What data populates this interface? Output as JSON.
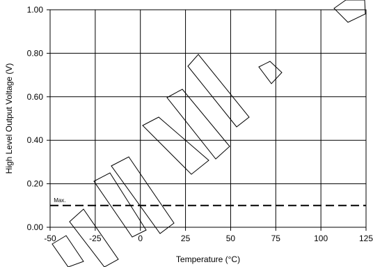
{
  "chart_data": {
    "type": "line",
    "title": "",
    "xlabel": "Temperature (°C)",
    "ylabel": "High Level Output Voltage (V)",
    "xlim": [
      -50,
      125
    ],
    "ylim": [
      0,
      1.0
    ],
    "x_ticks": [
      -50,
      -25,
      0,
      25,
      50,
      75,
      100,
      125
    ],
    "x_tick_labels": [
      "-50",
      "-25",
      "0",
      "25",
      "50",
      "75",
      "100",
      "125"
    ],
    "y_ticks": [
      0,
      0.2,
      0.4,
      0.6,
      0.8,
      1.0
    ],
    "y_tick_labels": [
      "0.00",
      "0.20",
      "0.40",
      "0.60",
      "0.80",
      "1.00"
    ],
    "grid": true,
    "legend": "none",
    "series": [
      {
        "style": "dashed",
        "x": [
          -50,
          125
        ],
        "y": [
          0.1,
          0.1
        ]
      }
    ],
    "annotations": [
      {
        "text": "Max.",
        "x": -48,
        "y": 0.115
      }
    ]
  }
}
